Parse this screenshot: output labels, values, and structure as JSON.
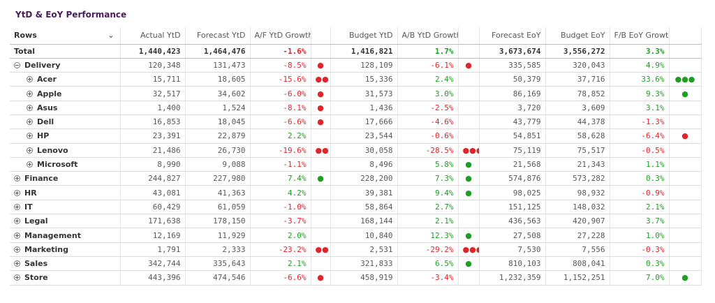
{
  "title": "YtD & EoY Performance",
  "header": {
    "rows": "Rows",
    "cols": [
      "Actual YtD",
      "Forecast YtD",
      "A/F YtD Growth",
      "",
      "Budget YtD",
      "A/B YtD Growth",
      "",
      "Forecast EoY",
      "Budget EoY",
      "F/B EoY Growth",
      ""
    ]
  },
  "total": {
    "label": "Total",
    "actual_ytd": "1,440,423",
    "forecast_ytd": "1,464,476",
    "af_growth": "-1.6%",
    "af_dots": "",
    "budget_ytd": "1,416,821",
    "ab_growth": "1.7%",
    "ab_dots": "",
    "forecast_eoy": "3,673,674",
    "budget_eoy": "3,556,272",
    "fb_growth": "3.3%",
    "fb_dots": ""
  },
  "rows": [
    {
      "label": "Delivery",
      "toggle": "minus",
      "sub": false,
      "actual_ytd": "120,348",
      "forecast_ytd": "131,473",
      "af_growth": "-8.5%",
      "af_dots": "●",
      "budget_ytd": "128,109",
      "ab_growth": "-6.1%",
      "ab_dots": "●",
      "forecast_eoy": "335,585",
      "budget_eoy": "320,043",
      "fb_growth": "4.9%",
      "fb_dots": ""
    },
    {
      "label": "Acer",
      "toggle": "plus",
      "sub": true,
      "actual_ytd": "15,711",
      "forecast_ytd": "18,605",
      "af_growth": "-15.6%",
      "af_dots": "●●",
      "budget_ytd": "15,336",
      "ab_growth": "2.4%",
      "ab_dots": "",
      "forecast_eoy": "50,379",
      "budget_eoy": "37,716",
      "fb_growth": "33.6%",
      "fb_dots": "●●●"
    },
    {
      "label": "Apple",
      "toggle": "plus",
      "sub": true,
      "actual_ytd": "32,517",
      "forecast_ytd": "34,602",
      "af_growth": "-6.0%",
      "af_dots": "●",
      "budget_ytd": "31,573",
      "ab_growth": "3.0%",
      "ab_dots": "",
      "forecast_eoy": "86,169",
      "budget_eoy": "78,852",
      "fb_growth": "9.3%",
      "fb_dots": "●"
    },
    {
      "label": "Asus",
      "toggle": "plus",
      "sub": true,
      "actual_ytd": "1,400",
      "forecast_ytd": "1,524",
      "af_growth": "-8.1%",
      "af_dots": "●",
      "budget_ytd": "1,436",
      "ab_growth": "-2.5%",
      "ab_dots": "",
      "forecast_eoy": "3,720",
      "budget_eoy": "3,609",
      "fb_growth": "3.1%",
      "fb_dots": ""
    },
    {
      "label": "Dell",
      "toggle": "plus",
      "sub": true,
      "actual_ytd": "16,853",
      "forecast_ytd": "18,045",
      "af_growth": "-6.6%",
      "af_dots": "●",
      "budget_ytd": "17,666",
      "ab_growth": "-4.6%",
      "ab_dots": "",
      "forecast_eoy": "43,779",
      "budget_eoy": "44,378",
      "fb_growth": "-1.3%",
      "fb_dots": ""
    },
    {
      "label": "HP",
      "toggle": "plus",
      "sub": true,
      "actual_ytd": "23,391",
      "forecast_ytd": "22,879",
      "af_growth": "2.2%",
      "af_dots": "",
      "budget_ytd": "23,544",
      "ab_growth": "-0.6%",
      "ab_dots": "",
      "forecast_eoy": "54,851",
      "budget_eoy": "58,628",
      "fb_growth": "-6.4%",
      "fb_dots": "●"
    },
    {
      "label": "Lenovo",
      "toggle": "plus",
      "sub": true,
      "actual_ytd": "21,486",
      "forecast_ytd": "26,730",
      "af_growth": "-19.6%",
      "af_dots": "●●",
      "budget_ytd": "30,058",
      "ab_growth": "-28.5%",
      "ab_dots": "●●●",
      "forecast_eoy": "75,119",
      "budget_eoy": "75,517",
      "fb_growth": "-0.5%",
      "fb_dots": ""
    },
    {
      "label": "Microsoft",
      "toggle": "plus",
      "sub": true,
      "actual_ytd": "8,990",
      "forecast_ytd": "9,088",
      "af_growth": "-1.1%",
      "af_dots": "",
      "budget_ytd": "8,496",
      "ab_growth": "5.8%",
      "ab_dots": "●",
      "forecast_eoy": "21,568",
      "budget_eoy": "21,343",
      "fb_growth": "1.1%",
      "fb_dots": ""
    },
    {
      "label": "Finance",
      "toggle": "plus",
      "sub": false,
      "actual_ytd": "244,827",
      "forecast_ytd": "227,980",
      "af_growth": "7.4%",
      "af_dots": "●",
      "budget_ytd": "228,200",
      "ab_growth": "7.3%",
      "ab_dots": "●",
      "forecast_eoy": "574,876",
      "budget_eoy": "573,282",
      "fb_growth": "0.3%",
      "fb_dots": ""
    },
    {
      "label": "HR",
      "toggle": "plus",
      "sub": false,
      "actual_ytd": "43,081",
      "forecast_ytd": "41,363",
      "af_growth": "4.2%",
      "af_dots": "",
      "budget_ytd": "39,381",
      "ab_growth": "9.4%",
      "ab_dots": "●",
      "forecast_eoy": "98,025",
      "budget_eoy": "98,932",
      "fb_growth": "-0.9%",
      "fb_dots": ""
    },
    {
      "label": "IT",
      "toggle": "plus",
      "sub": false,
      "actual_ytd": "60,429",
      "forecast_ytd": "61,059",
      "af_growth": "-1.0%",
      "af_dots": "",
      "budget_ytd": "58,864",
      "ab_growth": "2.7%",
      "ab_dots": "",
      "forecast_eoy": "151,125",
      "budget_eoy": "148,032",
      "fb_growth": "2.1%",
      "fb_dots": ""
    },
    {
      "label": "Legal",
      "toggle": "plus",
      "sub": false,
      "actual_ytd": "171,638",
      "forecast_ytd": "178,150",
      "af_growth": "-3.7%",
      "af_dots": "",
      "budget_ytd": "168,144",
      "ab_growth": "2.1%",
      "ab_dots": "",
      "forecast_eoy": "436,563",
      "budget_eoy": "420,907",
      "fb_growth": "3.7%",
      "fb_dots": ""
    },
    {
      "label": "Management",
      "toggle": "plus",
      "sub": false,
      "actual_ytd": "12,169",
      "forecast_ytd": "11,929",
      "af_growth": "2.0%",
      "af_dots": "",
      "budget_ytd": "10,840",
      "ab_growth": "12.3%",
      "ab_dots": "●",
      "forecast_eoy": "27,508",
      "budget_eoy": "27,228",
      "fb_growth": "1.0%",
      "fb_dots": ""
    },
    {
      "label": "Marketing",
      "toggle": "plus",
      "sub": false,
      "actual_ytd": "1,791",
      "forecast_ytd": "2,333",
      "af_growth": "-23.2%",
      "af_dots": "●●",
      "budget_ytd": "2,531",
      "ab_growth": "-29.2%",
      "ab_dots": "●●●",
      "forecast_eoy": "7,530",
      "budget_eoy": "7,556",
      "fb_growth": "-0.3%",
      "fb_dots": ""
    },
    {
      "label": "Sales",
      "toggle": "plus",
      "sub": false,
      "actual_ytd": "342,744",
      "forecast_ytd": "335,643",
      "af_growth": "2.1%",
      "af_dots": "",
      "budget_ytd": "321,833",
      "ab_growth": "6.5%",
      "ab_dots": "●",
      "forecast_eoy": "810,103",
      "budget_eoy": "808,041",
      "fb_growth": "0.3%",
      "fb_dots": ""
    },
    {
      "label": "Store",
      "toggle": "plus",
      "sub": false,
      "actual_ytd": "443,396",
      "forecast_ytd": "474,546",
      "af_growth": "-6.6%",
      "af_dots": "●",
      "budget_ytd": "458,919",
      "ab_growth": "-3.4%",
      "ab_dots": "",
      "forecast_eoy": "1,232,359",
      "budget_eoy": "1,152,251",
      "fb_growth": "7.0%",
      "fb_dots": "●"
    }
  ],
  "colors": {
    "title": "#4a1d5a",
    "negative": "#e0242a",
    "positive": "#1f9e24"
  }
}
